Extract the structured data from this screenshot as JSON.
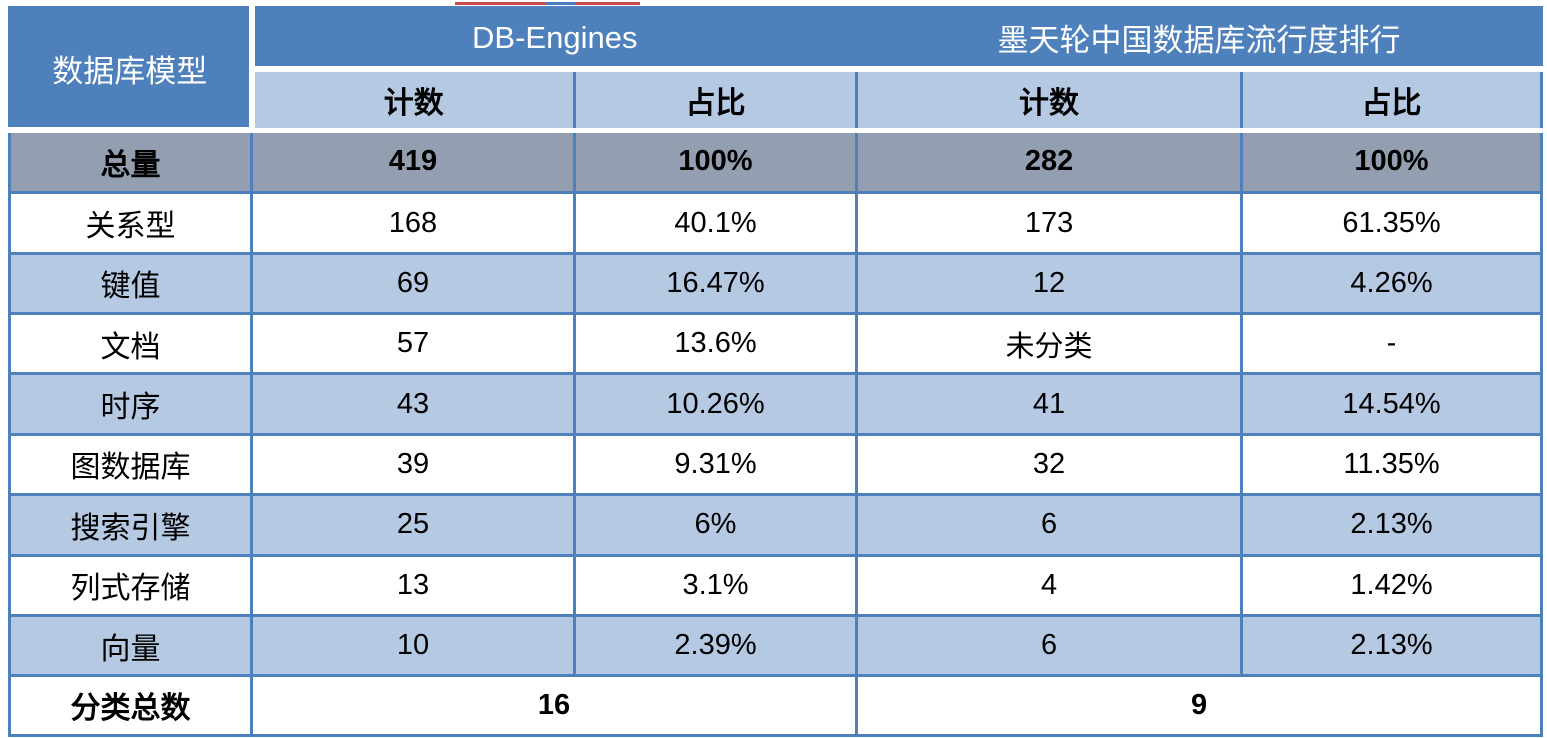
{
  "colors": {
    "header_blue": "#4e80bc",
    "subheader_light_blue": "#b5c9e2",
    "total_row_gray": "#939fb1",
    "border_blue": "#4e80bc",
    "header_text": "#ffffff",
    "body_text": "#000000"
  },
  "table": {
    "header": {
      "model_column": "数据库模型",
      "groups": [
        {
          "label": "DB-Engines"
        },
        {
          "label": "墨天轮中国数据库流行度排行"
        }
      ],
      "sub_headers": [
        "计数",
        "占比",
        "计数",
        "占比"
      ]
    },
    "rows": [
      {
        "label": "总量",
        "values": [
          "419",
          "100%",
          "282",
          "100%"
        ]
      },
      {
        "label": "关系型",
        "values": [
          "168",
          "40.1%",
          "173",
          "61.35%"
        ]
      },
      {
        "label": "键值",
        "values": [
          "69",
          "16.47%",
          "12",
          "4.26%"
        ]
      },
      {
        "label": "文档",
        "values": [
          "57",
          "13.6%",
          "未分类",
          "-"
        ]
      },
      {
        "label": "时序",
        "values": [
          "43",
          "10.26%",
          "41",
          "14.54%"
        ]
      },
      {
        "label": "图数据库",
        "values": [
          "39",
          "9.31%",
          "32",
          "11.35%"
        ]
      },
      {
        "label": "搜索引擎",
        "values": [
          "25",
          "6%",
          "6",
          "2.13%"
        ]
      },
      {
        "label": "列式存储",
        "values": [
          "13",
          "3.1%",
          "4",
          "1.42%"
        ]
      },
      {
        "label": "向量",
        "values": [
          "10",
          "2.39%",
          "6",
          "2.13%"
        ]
      }
    ],
    "footer": {
      "label": "分类总数",
      "values": [
        "16",
        "9"
      ]
    }
  },
  "chart_data": {
    "type": "table",
    "title": "数据库模型统计对比：DB-Engines vs 墨天轮中国数据库流行度排行",
    "columns": [
      "数据库模型",
      "DB-Engines 计数",
      "DB-Engines 占比",
      "墨天轮 计数",
      "墨天轮 占比"
    ],
    "rows": [
      [
        "总量",
        419,
        "100%",
        282,
        "100%"
      ],
      [
        "关系型",
        168,
        "40.1%",
        173,
        "61.35%"
      ],
      [
        "键值",
        69,
        "16.47%",
        12,
        "4.26%"
      ],
      [
        "文档",
        57,
        "13.6%",
        "未分类",
        "-"
      ],
      [
        "时序",
        43,
        "10.26%",
        41,
        "14.54%"
      ],
      [
        "图数据库",
        39,
        "9.31%",
        32,
        "11.35%"
      ],
      [
        "搜索引擎",
        25,
        "6%",
        6,
        "2.13%"
      ],
      [
        "列式存储",
        13,
        "3.1%",
        4,
        "1.42%"
      ],
      [
        "向量",
        10,
        "2.39%",
        6,
        "2.13%"
      ],
      [
        "分类总数",
        16,
        null,
        9,
        null
      ]
    ]
  }
}
